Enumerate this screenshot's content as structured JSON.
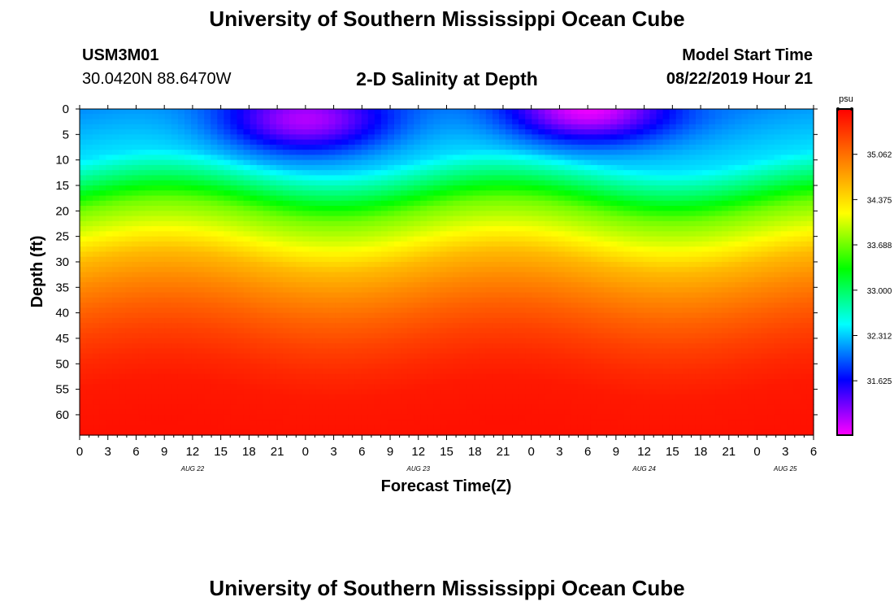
{
  "header": {
    "title": "University of Southern Mississippi Ocean Cube",
    "station_id": "USM3M01",
    "coordinates": "30.0420N 88.6470W",
    "plot_title": "2-D Salinity at Depth",
    "model_start_label": "Model Start Time",
    "model_start_value": "08/22/2019 Hour 21"
  },
  "footer": {
    "title": "University of Southern Mississippi Ocean Cube"
  },
  "chart_data": {
    "type": "heatmap",
    "title": "2-D Salinity at Depth",
    "xlabel": "Forecast Time(Z)",
    "ylabel": "Depth (ft)",
    "x_range_hours": [
      0,
      78
    ],
    "y_range": [
      0,
      64
    ],
    "y_inverted": true,
    "x_tick_labels": [
      "0",
      "3",
      "6",
      "9",
      "12",
      "15",
      "18",
      "21",
      "0",
      "3",
      "6",
      "9",
      "12",
      "15",
      "18",
      "21",
      "0",
      "3",
      "6",
      "9",
      "12",
      "15",
      "18",
      "21",
      "0",
      "3",
      "6"
    ],
    "date_labels": [
      {
        "label": "AUG 22",
        "hour": 12
      },
      {
        "label": "AUG 23",
        "hour": 36
      },
      {
        "label": "AUG 24",
        "hour": 60
      },
      {
        "label": "AUG 25",
        "hour": 75
      }
    ],
    "y_ticks": [
      0,
      5,
      10,
      15,
      20,
      25,
      30,
      35,
      40,
      45,
      50,
      55,
      60
    ],
    "colorbar": {
      "unit": "psu",
      "range": [
        30.8,
        35.75
      ],
      "tick_labels": [
        "35.062",
        "34.375",
        "33.688",
        "33.000",
        "32.312",
        "31.625"
      ]
    },
    "salinity_profile_by_depth": [
      {
        "depth": 0,
        "value": 32.1
      },
      {
        "depth": 10,
        "value": 32.4
      },
      {
        "depth": 15,
        "value": 33.0
      },
      {
        "depth": 20,
        "value": 33.7
      },
      {
        "depth": 25,
        "value": 34.1
      },
      {
        "depth": 30,
        "value": 34.6
      },
      {
        "depth": 35,
        "value": 34.9
      },
      {
        "depth": 40,
        "value": 35.15
      },
      {
        "depth": 45,
        "value": 35.35
      },
      {
        "depth": 50,
        "value": 35.5
      },
      {
        "depth": 55,
        "value": 35.6
      },
      {
        "depth": 64,
        "value": 35.65
      }
    ],
    "fresh_lens_events": [
      {
        "center_hour": 24,
        "depth": 2,
        "min_value": 31.0
      },
      {
        "center_hour": 54,
        "depth": 0,
        "min_value": 30.8
      }
    ]
  }
}
